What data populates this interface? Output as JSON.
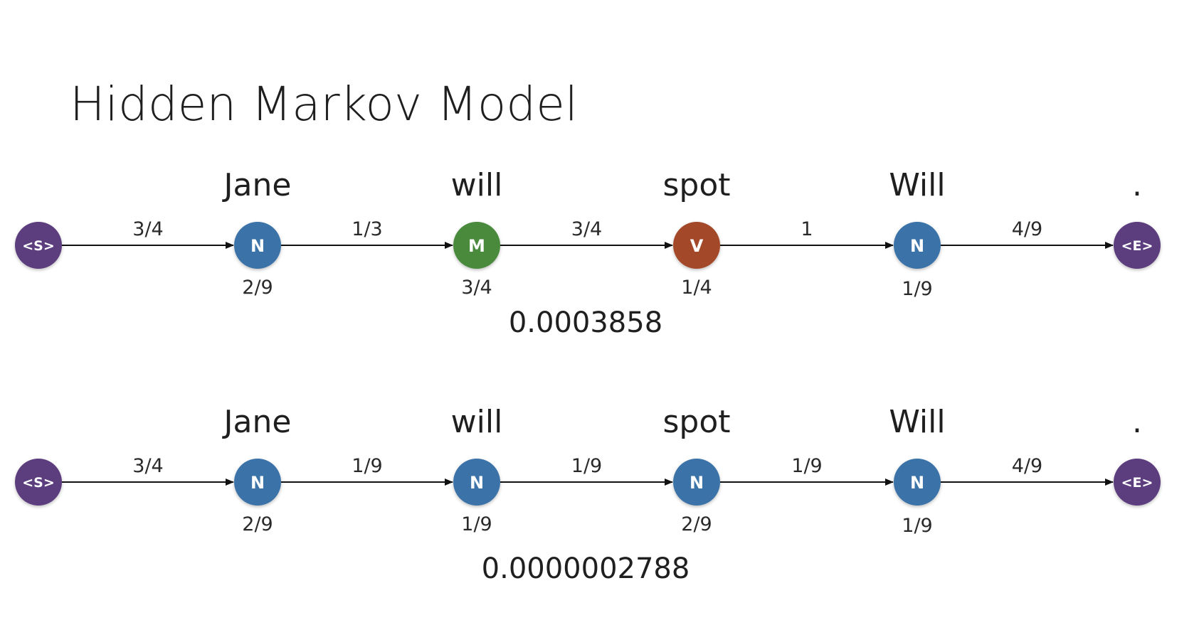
{
  "title": "Hidden Markov Model",
  "colors": {
    "N": "#3b73a8",
    "M": "#4a8a3c",
    "V": "#a34a2c",
    "S": "#5b3d7e",
    "E": "#5b3d7e",
    "arrow": "#111111"
  },
  "rows": [
    {
      "words": [
        "Jane",
        "will",
        "spot",
        "Will",
        "."
      ],
      "nodes": [
        "<S>",
        "N",
        "M",
        "V",
        "N",
        "<E>"
      ],
      "node_types": [
        "S",
        "N",
        "M",
        "V",
        "N",
        "E"
      ],
      "transitions": [
        "3/4",
        "1/3",
        "3/4",
        "1",
        "4/9"
      ],
      "emissions": [
        "2/9",
        "3/4",
        "1/4",
        "1/9"
      ],
      "total": "0.0003858"
    },
    {
      "words": [
        "Jane",
        "will",
        "spot",
        "Will",
        "."
      ],
      "nodes": [
        "<S>",
        "N",
        "N",
        "N",
        "N",
        "<E>"
      ],
      "node_types": [
        "S",
        "N",
        "N",
        "N",
        "N",
        "E"
      ],
      "transitions": [
        "3/4",
        "1/9",
        "1/9",
        "1/9",
        "4/9"
      ],
      "emissions": [
        "2/9",
        "1/9",
        "2/9",
        "1/9"
      ],
      "total": "0.0000002788"
    }
  ]
}
